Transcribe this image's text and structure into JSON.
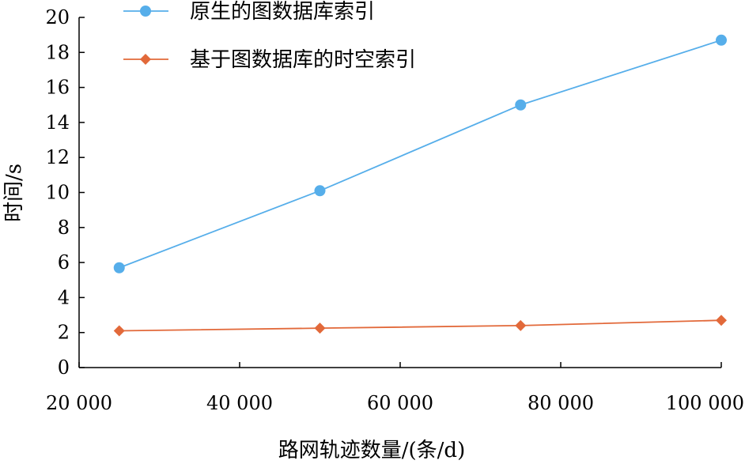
{
  "chart_data": {
    "type": "line",
    "title": "",
    "xlabel": "路网轨迹数量/(条/d)",
    "ylabel": "时间/s",
    "x": [
      25000,
      50000,
      75000,
      100000
    ],
    "xlim": [
      20000,
      100000
    ],
    "ylim": [
      0,
      20
    ],
    "xticks": [
      20000,
      40000,
      60000,
      80000,
      100000
    ],
    "xtick_labels": [
      "20 000",
      "40 000",
      "60 000",
      "80 000",
      "100 000"
    ],
    "yticks": [
      0,
      2,
      4,
      6,
      8,
      10,
      12,
      14,
      16,
      18,
      20
    ],
    "ytick_labels": [
      "0",
      "2",
      "4",
      "6",
      "8",
      "10",
      "12",
      "14",
      "16",
      "18",
      "20"
    ],
    "grid": false,
    "legend_position": "top-left",
    "series": [
      {
        "name": "原生的图数据库索引",
        "values": [
          5.7,
          10.1,
          15.0,
          18.7
        ],
        "color": "#56aeea",
        "marker": "circle"
      },
      {
        "name": "基于图数据库的时空索引",
        "values": [
          2.1,
          2.25,
          2.4,
          2.7
        ],
        "color": "#e2693a",
        "marker": "diamond"
      }
    ]
  }
}
